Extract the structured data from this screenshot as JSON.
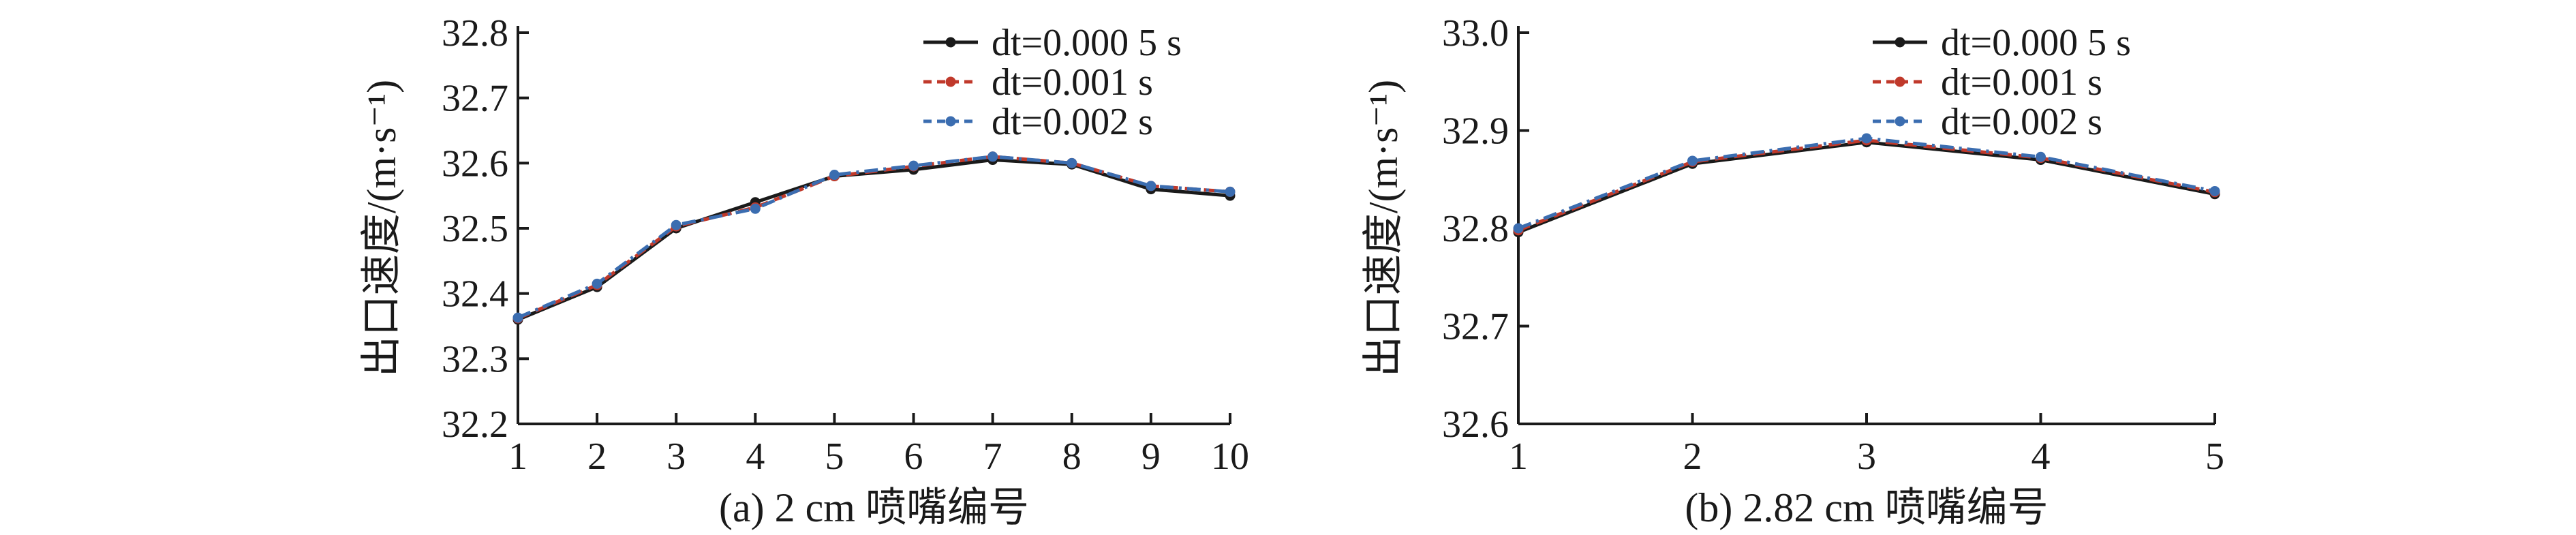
{
  "chart_data": [
    {
      "type": "line",
      "xlabel": "(a) 2 cm 喷嘴编号",
      "ylabel": "出口速度/(m·s⁻¹)",
      "x": [
        1,
        2,
        3,
        4,
        5,
        6,
        7,
        8,
        9,
        10
      ],
      "xlim": [
        1,
        10
      ],
      "ylim": [
        32.2,
        32.8
      ],
      "yticks": [
        "32.2",
        "32.3",
        "32.4",
        "32.5",
        "32.6",
        "32.7",
        "32.8"
      ],
      "xticks": [
        "1",
        "2",
        "3",
        "4",
        "5",
        "6",
        "7",
        "8",
        "9",
        "10"
      ],
      "legend_position": "top-right",
      "series": [
        {
          "name": "dt=0.000 5 s",
          "color": "#1a1a1a",
          "dash": "solid",
          "values": [
            32.36,
            32.41,
            32.5,
            32.54,
            32.58,
            32.59,
            32.605,
            32.598,
            32.56,
            32.55
          ]
        },
        {
          "name": "dt=0.001 s",
          "color": "#c0392b",
          "dash": "dashed",
          "values": [
            32.362,
            32.413,
            32.503,
            32.532,
            32.58,
            32.595,
            32.61,
            32.6,
            32.565,
            32.556
          ]
        },
        {
          "name": "dt=0.002 s",
          "color": "#3b6db0",
          "dash": "dashdot",
          "values": [
            32.363,
            32.415,
            32.505,
            32.53,
            32.582,
            32.596,
            32.61,
            32.6,
            32.565,
            32.556
          ]
        }
      ]
    },
    {
      "type": "line",
      "xlabel": "(b) 2.82 cm 喷嘴编号",
      "ylabel": "出口速度/(m·s⁻¹)",
      "x": [
        1,
        2,
        3,
        4,
        5
      ],
      "xlim": [
        1,
        5
      ],
      "ylim": [
        32.6,
        33.0
      ],
      "yticks": [
        "32.6",
        "32.7",
        "32.8",
        "32.9",
        "33.0"
      ],
      "xticks": [
        "1",
        "2",
        "3",
        "4",
        "5"
      ],
      "legend_position": "top-right",
      "series": [
        {
          "name": "dt=0.000 5 s",
          "color": "#1a1a1a",
          "dash": "solid",
          "values": [
            32.796,
            32.866,
            32.888,
            32.87,
            32.835
          ]
        },
        {
          "name": "dt=0.001 s",
          "color": "#c0392b",
          "dash": "dashed",
          "values": [
            32.798,
            32.868,
            32.89,
            32.872,
            32.837
          ]
        },
        {
          "name": "dt=0.002 s",
          "color": "#3b6db0",
          "dash": "dashdot",
          "values": [
            32.8,
            32.869,
            32.892,
            32.873,
            32.838
          ]
        }
      ]
    }
  ]
}
